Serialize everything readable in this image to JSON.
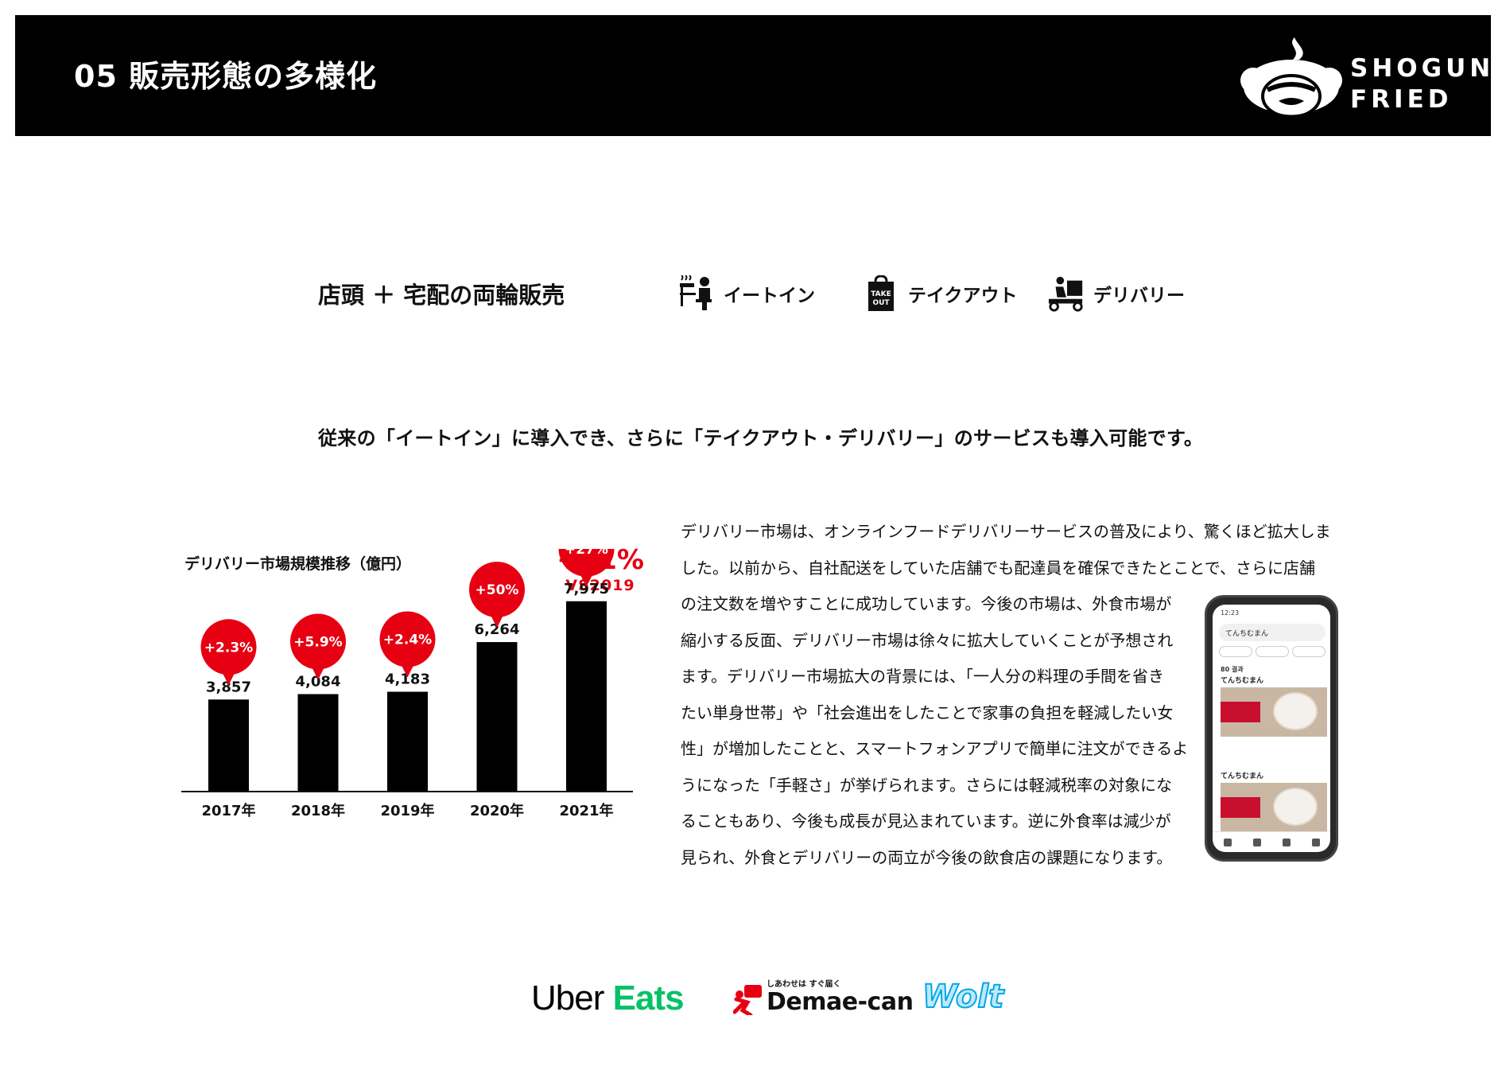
{
  "header": {
    "title": "05 販売形態の多様化",
    "brand_line1": "SHOGUN",
    "brand_line2": "FRIED"
  },
  "concept": {
    "title": "店頭 ＋ 宅配の両輪販売",
    "modes": [
      {
        "label": "イートイン",
        "icon": "eat-in-icon"
      },
      {
        "label": "テイクアウト",
        "icon": "takeout-bag-icon",
        "icon_text_1": "TAKE",
        "icon_text_2": "OUT"
      },
      {
        "label": "デリバリー",
        "icon": "delivery-scooter-icon"
      }
    ]
  },
  "lead": "従来の「イートイン」に導入でき、さらに「テイクアウト・デリバリー」のサービスも導入可能です。",
  "chart_data": {
    "type": "bar",
    "title": "デリバリー市場規模推移（億円）",
    "categories": [
      "2017年",
      "2018年",
      "2019年",
      "2020年",
      "2021年"
    ],
    "values": [
      3857,
      4084,
      4183,
      6264,
      7975
    ],
    "value_labels": [
      "3,857",
      "4,084",
      "4,183",
      "6,264",
      "7,975"
    ],
    "growth_badges": [
      "+2.3%",
      "+5.9%",
      "+2.4%",
      "+50%",
      "+27%"
    ],
    "ylim": [
      0,
      9000
    ],
    "bar_color": "#000000",
    "badge_color": "#e60012",
    "headline_growth": "+91%",
    "headline_compare": "VS2019"
  },
  "body": {
    "lines": [
      "デリバリー市場は、オンラインフードデリバリーサービスの普及により、驚くほど拡大しま",
      "した。以前から、自社配送をしていた店舗でも配達員を確保できたとことで、さらに店舗",
      "の注文数を増やすことに成功しています。今後の市場は、外食市場が",
      "縮小する反面、デリバリー市場は徐々に拡大していくことが予想され",
      "ます。デリバリー市場拡大の背景には、「一人分の料理の手間を省き",
      "たい単身世帯」や「社会進出をしたことで家事の負担を軽減したい女",
      "性」が増加したことと、スマートフォンアプリで簡単に注文ができるよ",
      "うになった「手軽さ」が挙げられます。さらには軽減税率の対象にな",
      "ることもあり、今後も成長が見込まれています。逆に外食率は減少が",
      "見られ、外食とデリバリーの両立が今後の飲食店の課題になります。"
    ]
  },
  "phone": {
    "time": "12:23",
    "search": "てんちむまん",
    "result_count": "80 결과",
    "item1": "てんちむまん",
    "item2": "てんちむまん"
  },
  "partners": {
    "uber_part1": "Uber",
    "uber_part2": "Eats",
    "demae_tagline": "しあわせは すぐ届く",
    "demae_name": "Demae-can",
    "wolt": "Wolt"
  }
}
